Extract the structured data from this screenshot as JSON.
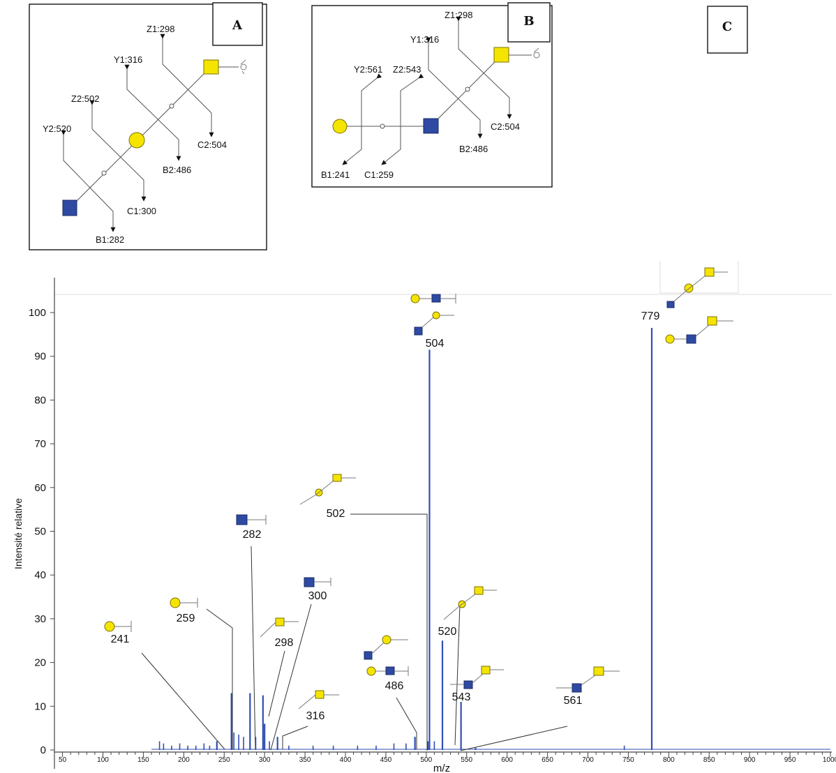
{
  "colors": {
    "gal": "#f5e400",
    "glcnac": "#2e4aa2",
    "peak": "#2f4fb3",
    "line": "#333333"
  },
  "panels": {
    "A": {
      "label": "A",
      "fragments": [
        "Z1:298",
        "Y1:316",
        "Z2:502",
        "Y2:520",
        "C2:504",
        "B2:486",
        "C1:300",
        "B1:282"
      ]
    },
    "B": {
      "label": "B",
      "fragments": [
        "Z1:298",
        "Y1:316",
        "Y2:561",
        "Z2:543",
        "C2:504",
        "B2:486",
        "B1:241",
        "C1:259"
      ]
    },
    "C": {
      "label": "C"
    }
  },
  "chart_data": {
    "type": "bar",
    "title": "",
    "xlabel": "m/z",
    "ylabel": "Intensité relative",
    "xlim": [
      40,
      1000
    ],
    "ylim": [
      0,
      104
    ],
    "x_ticks": [
      50,
      100,
      150,
      200,
      250,
      300,
      350,
      400,
      450,
      500,
      550,
      600,
      650,
      700,
      750,
      800,
      850,
      900,
      950,
      1000
    ],
    "y_ticks": [
      0,
      10,
      20,
      30,
      40,
      50,
      60,
      70,
      80,
      90,
      100
    ],
    "labeled_peaks": [
      {
        "mz": 241,
        "intensity": 2,
        "label": "241"
      },
      {
        "mz": 259,
        "intensity": 13,
        "label": "259"
      },
      {
        "mz": 282,
        "intensity": 13,
        "label": "282"
      },
      {
        "mz": 298,
        "intensity": 12.5,
        "label": "298"
      },
      {
        "mz": 300,
        "intensity": 6,
        "label": "300"
      },
      {
        "mz": 316,
        "intensity": 3,
        "label": "316"
      },
      {
        "mz": 486,
        "intensity": 3,
        "label": "486"
      },
      {
        "mz": 502,
        "intensity": 2,
        "label": "502"
      },
      {
        "mz": 504,
        "intensity": 91.5,
        "label": "504"
      },
      {
        "mz": 520,
        "intensity": 25,
        "label": "520"
      },
      {
        "mz": 543,
        "intensity": 11,
        "label": "543"
      },
      {
        "mz": 561,
        "intensity": 0.5,
        "label": "561"
      },
      {
        "mz": 779,
        "intensity": 96.5,
        "label": "779"
      }
    ],
    "minor_peaks": [
      {
        "mz": 170,
        "intensity": 2
      },
      {
        "mz": 175,
        "intensity": 1.5
      },
      {
        "mz": 185,
        "intensity": 1
      },
      {
        "mz": 195,
        "intensity": 1.5
      },
      {
        "mz": 205,
        "intensity": 1
      },
      {
        "mz": 215,
        "intensity": 1
      },
      {
        "mz": 225,
        "intensity": 1.5
      },
      {
        "mz": 232,
        "intensity": 1
      },
      {
        "mz": 262,
        "intensity": 4
      },
      {
        "mz": 268,
        "intensity": 3.5
      },
      {
        "mz": 274,
        "intensity": 3
      },
      {
        "mz": 289,
        "intensity": 3
      },
      {
        "mz": 306,
        "intensity": 2
      },
      {
        "mz": 330,
        "intensity": 1
      },
      {
        "mz": 360,
        "intensity": 1
      },
      {
        "mz": 385,
        "intensity": 1
      },
      {
        "mz": 415,
        "intensity": 1
      },
      {
        "mz": 438,
        "intensity": 1
      },
      {
        "mz": 460,
        "intensity": 1.5
      },
      {
        "mz": 475,
        "intensity": 1.5
      },
      {
        "mz": 510,
        "intensity": 2
      },
      {
        "mz": 745,
        "intensity": 1
      }
    ]
  }
}
